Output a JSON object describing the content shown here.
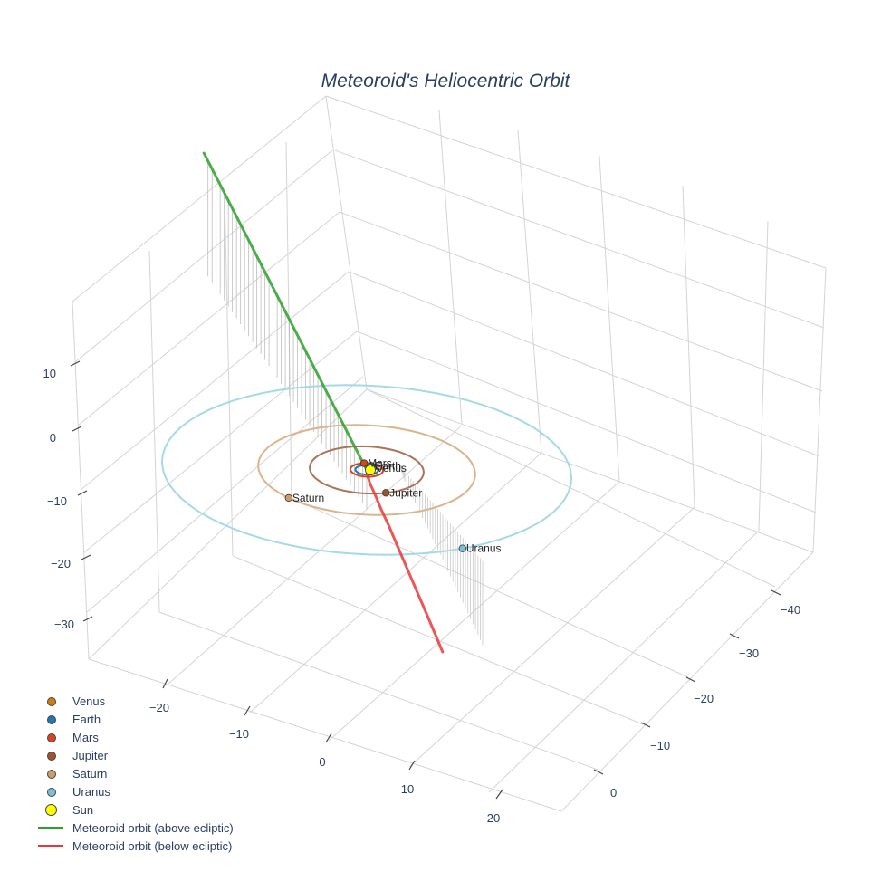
{
  "chart_data": {
    "type": "scatter3d",
    "title": "Meteoroid's Heliocentric Orbit",
    "axes": {
      "x_ticks": [
        "−20",
        "−10",
        "0",
        "10",
        "20"
      ],
      "y_ticks": [
        "−40",
        "−30",
        "−20",
        "−10",
        "0"
      ],
      "z_ticks": [
        "10",
        "0",
        "−10",
        "−20",
        "−30"
      ],
      "grid": true
    },
    "planets": [
      {
        "name": "Venus",
        "color": "#d07c12",
        "x": 0.3,
        "y": -0.6,
        "z": 0,
        "orbit_color": null
      },
      {
        "name": "Earth",
        "color": "#1f77b4",
        "x": 0.0,
        "y": -1.0,
        "z": 0,
        "orbit_color": "#1f77b4"
      },
      {
        "name": "Mars",
        "color": "#d9441e",
        "x": -0.8,
        "y": -1.2,
        "z": 0,
        "orbit_color": "#d9441e"
      },
      {
        "name": "Jupiter",
        "color": "#a0522d",
        "x": 3.5,
        "y": 3.6,
        "z": 0,
        "orbit_color": "#a9745a"
      },
      {
        "name": "Saturn",
        "color": "#cf9a6c",
        "x": -3.5,
        "y": 8.9,
        "z": 0,
        "orbit_color": "#d9b48c"
      },
      {
        "name": "Uranus",
        "color": "#79c1db",
        "x": 14.3,
        "y": 11.0,
        "z": 0,
        "orbit_color": "#a4d9e8"
      }
    ],
    "sun": {
      "name": "Sun",
      "color": "#ffff00",
      "x": 0,
      "y": 0,
      "z": 0
    },
    "meteoroid": {
      "above": {
        "name": "Meteoroid orbit (above ecliptic)",
        "color": "#2ca02c",
        "points": [
          [
            0,
            0,
            0
          ],
          [
            -2.9,
            -2.9,
            2.0
          ],
          [
            -5.8,
            -5.8,
            4.0
          ],
          [
            -8.7,
            -8.7,
            6.0
          ],
          [
            -11.6,
            -11.6,
            8.0
          ],
          [
            -14.5,
            -14.5,
            10.0
          ],
          [
            -17.4,
            -17.4,
            12.0
          ],
          [
            -20.3,
            -20.3,
            14.0
          ],
          [
            -23.2,
            -23.2,
            16.0
          ],
          [
            -26.1,
            -26.1,
            18.0
          ],
          [
            -29.0,
            -29.0,
            20.0
          ]
        ]
      },
      "below": {
        "name": "Meteoroid orbit (below ecliptic)",
        "color": "#e8393a",
        "points": [
          [
            0,
            0,
            0
          ],
          [
            0.3,
            0.5,
            -0.3
          ],
          [
            0.9,
            1.3,
            -0.9
          ],
          [
            1.9,
            2.3,
            -1.8
          ],
          [
            3.0,
            3.5,
            -2.8
          ],
          [
            4.3,
            4.8,
            -3.9
          ],
          [
            5.6,
            6.2,
            -5.0
          ],
          [
            6.9,
            7.6,
            -6.1
          ],
          [
            8.2,
            9.0,
            -7.2
          ],
          [
            9.5,
            10.4,
            -8.3
          ],
          [
            10.8,
            11.8,
            -9.4
          ],
          [
            12.1,
            13.2,
            -10.5
          ],
          [
            13.4,
            14.6,
            -11.6
          ],
          [
            14.6,
            15.9,
            -12.7
          ]
        ]
      }
    },
    "legend": [
      {
        "label": "Venus",
        "kind": "dot",
        "color": "#d07c12"
      },
      {
        "label": "Earth",
        "kind": "dot",
        "color": "#1f77b4"
      },
      {
        "label": "Mars",
        "kind": "dot",
        "color": "#d9441e"
      },
      {
        "label": "Jupiter",
        "kind": "dot",
        "color": "#a0522d"
      },
      {
        "label": "Saturn",
        "kind": "dot",
        "color": "#cf9a6c"
      },
      {
        "label": "Uranus",
        "kind": "dot",
        "color": "#79c1db"
      },
      {
        "label": "Sun",
        "kind": "sun",
        "color": "#ffff00"
      },
      {
        "label": "Meteoroid orbit (above ecliptic)",
        "kind": "line",
        "color": "#2ca02c"
      },
      {
        "label": "Meteoroid orbit (below ecliptic)",
        "kind": "line",
        "color": "#e8393a"
      }
    ],
    "legend_position": "bottom-left"
  }
}
